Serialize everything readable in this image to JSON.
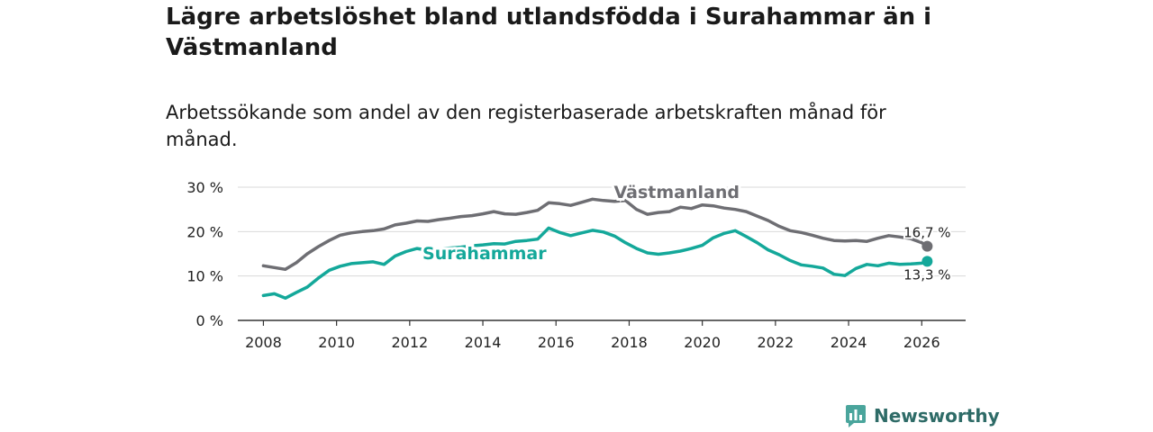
{
  "title": "Lägre arbetslöshet bland utlandsfödda i Surahammar än i Västmanland",
  "subtitle": "Arbetssökande som andel av den registerbaserade arbetskraften månad för månad.",
  "brand": {
    "name": "Newsworthy",
    "icon": "newsworthy-logo-icon"
  },
  "chart_data": {
    "type": "line",
    "ylim": [
      0,
      30
    ],
    "xlim": [
      2007.3,
      2027.2
    ],
    "y_ticks": [
      {
        "value": 0,
        "label": "0 %"
      },
      {
        "value": 10,
        "label": "10 %"
      },
      {
        "value": 20,
        "label": "20 %"
      },
      {
        "value": 30,
        "label": "30 %"
      }
    ],
    "x_ticks": [
      {
        "value": 2008,
        "label": "2008"
      },
      {
        "value": 2010,
        "label": "2010"
      },
      {
        "value": 2012,
        "label": "2012"
      },
      {
        "value": 2014,
        "label": "2014"
      },
      {
        "value": 2016,
        "label": "2016"
      },
      {
        "value": 2018,
        "label": "2018"
      },
      {
        "value": 2020,
        "label": "2020"
      },
      {
        "value": 2022,
        "label": "2022"
      },
      {
        "value": 2024,
        "label": "2024"
      },
      {
        "value": 2026,
        "label": "2026"
      }
    ],
    "grid": true,
    "series": [
      {
        "name": "Västmanland",
        "color": "#6e6e73",
        "end_label": "16,7 %",
        "points": [
          [
            2008.0,
            12.3
          ],
          [
            2008.3,
            11.9
          ],
          [
            2008.6,
            11.5
          ],
          [
            2008.9,
            13.0
          ],
          [
            2009.2,
            15.0
          ],
          [
            2009.5,
            16.6
          ],
          [
            2009.8,
            18.0
          ],
          [
            2010.1,
            19.2
          ],
          [
            2010.4,
            19.7
          ],
          [
            2010.7,
            20.0
          ],
          [
            2011.0,
            20.2
          ],
          [
            2011.3,
            20.6
          ],
          [
            2011.6,
            21.5
          ],
          [
            2011.9,
            21.9
          ],
          [
            2012.2,
            22.4
          ],
          [
            2012.5,
            22.3
          ],
          [
            2012.8,
            22.7
          ],
          [
            2013.1,
            23.0
          ],
          [
            2013.4,
            23.4
          ],
          [
            2013.7,
            23.6
          ],
          [
            2014.0,
            24.0
          ],
          [
            2014.3,
            24.5
          ],
          [
            2014.6,
            24.0
          ],
          [
            2014.9,
            23.9
          ],
          [
            2015.2,
            24.3
          ],
          [
            2015.5,
            24.8
          ],
          [
            2015.8,
            26.5
          ],
          [
            2016.1,
            26.3
          ],
          [
            2016.4,
            25.9
          ],
          [
            2016.7,
            26.6
          ],
          [
            2017.0,
            27.3
          ],
          [
            2017.3,
            27.0
          ],
          [
            2017.6,
            26.8
          ],
          [
            2017.9,
            27.0
          ],
          [
            2018.2,
            25.0
          ],
          [
            2018.5,
            23.9
          ],
          [
            2018.8,
            24.3
          ],
          [
            2019.1,
            24.5
          ],
          [
            2019.4,
            25.5
          ],
          [
            2019.7,
            25.2
          ],
          [
            2020.0,
            26.0
          ],
          [
            2020.3,
            25.8
          ],
          [
            2020.6,
            25.3
          ],
          [
            2020.9,
            25.0
          ],
          [
            2021.2,
            24.5
          ],
          [
            2021.5,
            23.5
          ],
          [
            2021.8,
            22.5
          ],
          [
            2022.1,
            21.2
          ],
          [
            2022.4,
            20.2
          ],
          [
            2022.7,
            19.8
          ],
          [
            2023.0,
            19.2
          ],
          [
            2023.3,
            18.5
          ],
          [
            2023.6,
            18.0
          ],
          [
            2023.9,
            17.9
          ],
          [
            2024.2,
            18.0
          ],
          [
            2024.5,
            17.8
          ],
          [
            2024.8,
            18.5
          ],
          [
            2025.1,
            19.1
          ],
          [
            2025.4,
            18.8
          ],
          [
            2025.7,
            18.4
          ],
          [
            2026.0,
            17.5
          ],
          [
            2026.15,
            16.7
          ]
        ]
      },
      {
        "name": "Surahammar",
        "color": "#14a89a",
        "end_label": "13,3 %",
        "points": [
          [
            2008.0,
            5.6
          ],
          [
            2008.3,
            6.0
          ],
          [
            2008.6,
            5.0
          ],
          [
            2008.9,
            6.3
          ],
          [
            2009.2,
            7.5
          ],
          [
            2009.5,
            9.5
          ],
          [
            2009.8,
            11.3
          ],
          [
            2010.1,
            12.2
          ],
          [
            2010.4,
            12.8
          ],
          [
            2010.7,
            13.0
          ],
          [
            2011.0,
            13.2
          ],
          [
            2011.3,
            12.6
          ],
          [
            2011.6,
            14.5
          ],
          [
            2011.9,
            15.5
          ],
          [
            2012.2,
            16.2
          ],
          [
            2012.5,
            15.8
          ],
          [
            2012.8,
            16.1
          ],
          [
            2013.1,
            16.3
          ],
          [
            2013.4,
            16.5
          ],
          [
            2013.7,
            16.8
          ],
          [
            2014.0,
            17.0
          ],
          [
            2014.3,
            17.3
          ],
          [
            2014.6,
            17.2
          ],
          [
            2014.9,
            17.8
          ],
          [
            2015.2,
            18.0
          ],
          [
            2015.5,
            18.3
          ],
          [
            2015.8,
            20.8
          ],
          [
            2016.1,
            19.8
          ],
          [
            2016.4,
            19.1
          ],
          [
            2016.7,
            19.7
          ],
          [
            2017.0,
            20.3
          ],
          [
            2017.3,
            19.9
          ],
          [
            2017.6,
            19.0
          ],
          [
            2017.9,
            17.5
          ],
          [
            2018.2,
            16.2
          ],
          [
            2018.5,
            15.2
          ],
          [
            2018.8,
            14.9
          ],
          [
            2019.1,
            15.2
          ],
          [
            2019.4,
            15.6
          ],
          [
            2019.7,
            16.2
          ],
          [
            2020.0,
            16.9
          ],
          [
            2020.3,
            18.6
          ],
          [
            2020.6,
            19.6
          ],
          [
            2020.9,
            20.2
          ],
          [
            2021.2,
            18.9
          ],
          [
            2021.5,
            17.5
          ],
          [
            2021.8,
            15.9
          ],
          [
            2022.1,
            14.8
          ],
          [
            2022.4,
            13.5
          ],
          [
            2022.7,
            12.5
          ],
          [
            2023.0,
            12.2
          ],
          [
            2023.3,
            11.8
          ],
          [
            2023.6,
            10.4
          ],
          [
            2023.9,
            10.1
          ],
          [
            2024.2,
            11.7
          ],
          [
            2024.5,
            12.6
          ],
          [
            2024.8,
            12.3
          ],
          [
            2025.1,
            12.9
          ],
          [
            2025.4,
            12.6
          ],
          [
            2025.7,
            12.7
          ],
          [
            2026.0,
            12.9
          ],
          [
            2026.15,
            13.3
          ]
        ]
      }
    ]
  }
}
